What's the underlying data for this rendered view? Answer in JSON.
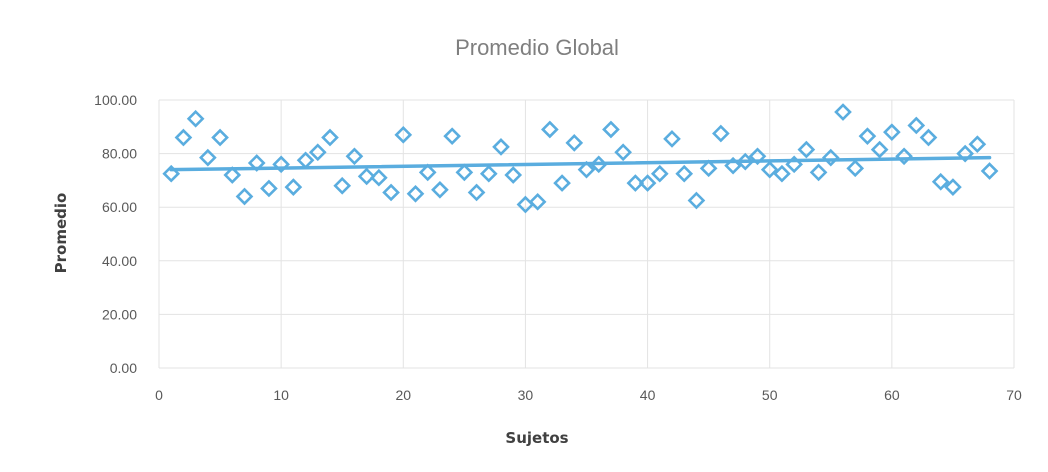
{
  "chart_data": {
    "type": "scatter",
    "title": "Promedio Global",
    "xlabel": "Sujetos",
    "ylabel": "Promedio",
    "xlim": [
      0,
      70
    ],
    "ylim": [
      0,
      100
    ],
    "x_ticks": [
      "0",
      "10",
      "20",
      "30",
      "40",
      "50",
      "60",
      "70"
    ],
    "y_ticks": [
      "0.00",
      "20.00",
      "40.00",
      "60.00",
      "80.00",
      "100.00"
    ],
    "grid": true,
    "legend": "none",
    "colors": {
      "marker": "#5aaddf",
      "trendline": "#5aaddf",
      "title": "#7f7f7f"
    },
    "marker": "diamond-hollow",
    "trendline": {
      "type": "linear",
      "x": [
        1,
        68
      ],
      "y": [
        74.0,
        78.5
      ]
    },
    "points": [
      {
        "x": 1,
        "y": 72.5
      },
      {
        "x": 2,
        "y": 86.0
      },
      {
        "x": 3,
        "y": 93.0
      },
      {
        "x": 4,
        "y": 78.5
      },
      {
        "x": 5,
        "y": 86.0
      },
      {
        "x": 6,
        "y": 72.0
      },
      {
        "x": 7,
        "y": 64.0
      },
      {
        "x": 8,
        "y": 76.5
      },
      {
        "x": 9,
        "y": 67.0
      },
      {
        "x": 10,
        "y": 76.0
      },
      {
        "x": 11,
        "y": 67.5
      },
      {
        "x": 12,
        "y": 77.5
      },
      {
        "x": 13,
        "y": 80.5
      },
      {
        "x": 14,
        "y": 86.0
      },
      {
        "x": 15,
        "y": 68.0
      },
      {
        "x": 16,
        "y": 79.0
      },
      {
        "x": 17,
        "y": 71.5
      },
      {
        "x": 18,
        "y": 71.0
      },
      {
        "x": 19,
        "y": 65.5
      },
      {
        "x": 20,
        "y": 87.0
      },
      {
        "x": 21,
        "y": 65.0
      },
      {
        "x": 22,
        "y": 73.0
      },
      {
        "x": 23,
        "y": 66.5
      },
      {
        "x": 24,
        "y": 86.5
      },
      {
        "x": 25,
        "y": 73.0
      },
      {
        "x": 26,
        "y": 65.5
      },
      {
        "x": 27,
        "y": 72.5
      },
      {
        "x": 28,
        "y": 82.5
      },
      {
        "x": 29,
        "y": 72.0
      },
      {
        "x": 30,
        "y": 61.0
      },
      {
        "x": 31,
        "y": 62.0
      },
      {
        "x": 32,
        "y": 89.0
      },
      {
        "x": 33,
        "y": 69.0
      },
      {
        "x": 34,
        "y": 84.0
      },
      {
        "x": 35,
        "y": 74.0
      },
      {
        "x": 36,
        "y": 76.0
      },
      {
        "x": 37,
        "y": 89.0
      },
      {
        "x": 38,
        "y": 80.5
      },
      {
        "x": 39,
        "y": 69.0
      },
      {
        "x": 40,
        "y": 69.0
      },
      {
        "x": 41,
        "y": 72.5
      },
      {
        "x": 42,
        "y": 85.5
      },
      {
        "x": 43,
        "y": 72.5
      },
      {
        "x": 44,
        "y": 62.5
      },
      {
        "x": 45,
        "y": 74.5
      },
      {
        "x": 46,
        "y": 87.5
      },
      {
        "x": 47,
        "y": 75.5
      },
      {
        "x": 48,
        "y": 77.0
      },
      {
        "x": 49,
        "y": 79.0
      },
      {
        "x": 50,
        "y": 74.0
      },
      {
        "x": 51,
        "y": 72.5
      },
      {
        "x": 52,
        "y": 76.0
      },
      {
        "x": 53,
        "y": 81.5
      },
      {
        "x": 54,
        "y": 73.0
      },
      {
        "x": 55,
        "y": 78.5
      },
      {
        "x": 56,
        "y": 95.5
      },
      {
        "x": 57,
        "y": 74.5
      },
      {
        "x": 58,
        "y": 86.5
      },
      {
        "x": 59,
        "y": 81.5
      },
      {
        "x": 60,
        "y": 88.0
      },
      {
        "x": 61,
        "y": 79.0
      },
      {
        "x": 62,
        "y": 90.5
      },
      {
        "x": 63,
        "y": 86.0
      },
      {
        "x": 64,
        "y": 69.5
      },
      {
        "x": 65,
        "y": 67.5
      },
      {
        "x": 66,
        "y": 80.0
      },
      {
        "x": 67,
        "y": 83.5
      },
      {
        "x": 68,
        "y": 73.5
      }
    ]
  }
}
